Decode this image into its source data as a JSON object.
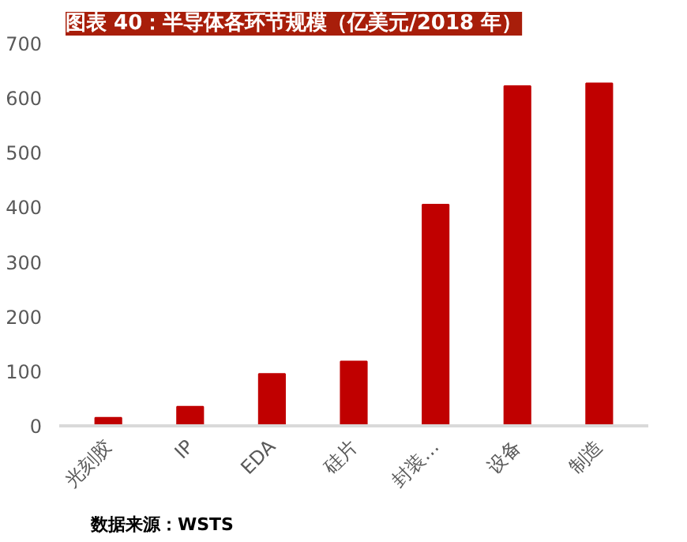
{
  "chart_data": {
    "type": "bar",
    "title": "图表 40：半导体各环节规模（亿美元/2018 年）",
    "categories": [
      "光刻胶",
      "IP",
      "EDA",
      "硅片",
      "封装…",
      "设备",
      "制造"
    ],
    "values": [
      15,
      35,
      95,
      118,
      405,
      622,
      627
    ],
    "color": "#c00000",
    "ylim": [
      0,
      700
    ],
    "yticks": [
      0,
      100,
      200,
      300,
      400,
      500,
      600,
      700
    ],
    "grid": false,
    "annotations": [
      "数据来源：WSTS"
    ]
  }
}
